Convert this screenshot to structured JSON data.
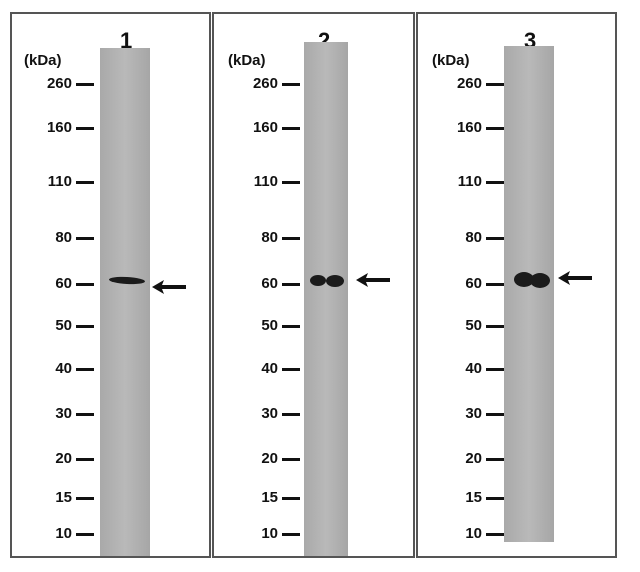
{
  "unit_label": "(kDa)",
  "markers": [
    "260",
    "160",
    "110",
    "80",
    "60",
    "50",
    "40",
    "30",
    "20",
    "15",
    "10"
  ],
  "lanes": [
    {
      "number": "1"
    },
    {
      "number": "2"
    },
    {
      "number": "3"
    }
  ],
  "arrow_icon": "arrow-left-icon",
  "colors": {
    "band": "#1b1b1b",
    "lane": "#b0b0b0",
    "border": "#555555"
  }
}
